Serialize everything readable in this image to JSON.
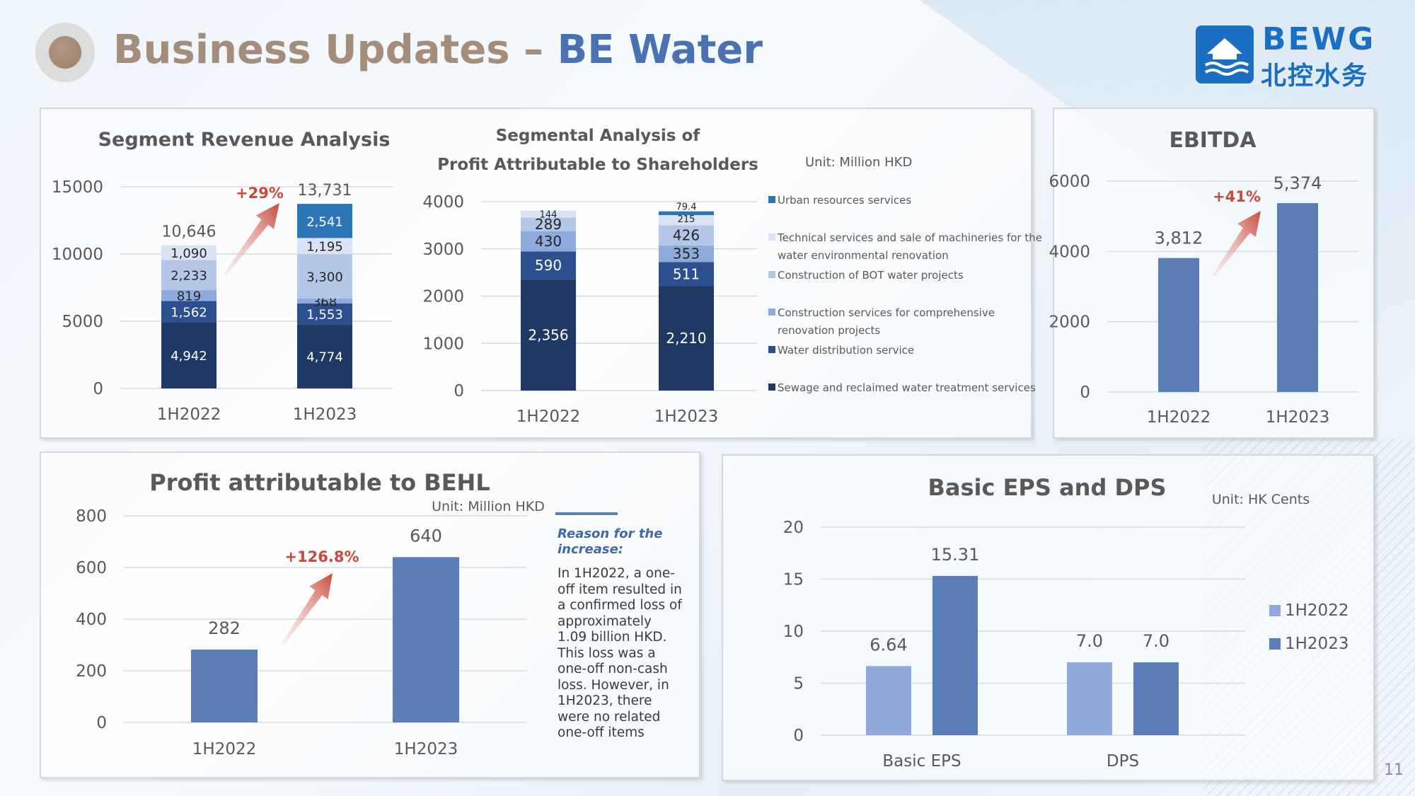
{
  "header": {
    "title_part1": "Business Updates – ",
    "title_part2": "BE Water",
    "logo_en": "BEWG",
    "logo_cn": "北控水务",
    "page_number": "11"
  },
  "colors": {
    "title_brown": "#a58d7c",
    "title_blue": "#4a72b2",
    "bar_blue": "#5b7db8",
    "bar_light": "#8ea9da",
    "growth_red": "#c94a3c"
  },
  "chart_data": [
    {
      "id": "segment_revenue",
      "type": "bar",
      "stacked": true,
      "title": "Segment Revenue Analysis",
      "categories": [
        "1H2022",
        "1H2023"
      ],
      "ylim": [
        0,
        15000
      ],
      "yticks": [
        "0",
        "5000",
        "10000",
        "15000"
      ],
      "series": [
        {
          "values": [
            4942,
            4774
          ],
          "labels": [
            "4,942",
            "4,774"
          ],
          "color": "#1f3864"
        },
        {
          "values": [
            1562,
            1553
          ],
          "labels": [
            "1,562",
            "1,553"
          ],
          "color": "#2c4f8f"
        },
        {
          "values": [
            819,
            368
          ],
          "labels": [
            "819",
            "368"
          ],
          "color": "#8faadc"
        },
        {
          "values": [
            2233,
            3300
          ],
          "labels": [
            "2,233",
            "3,300"
          ],
          "color": "#b4c7e7"
        },
        {
          "values": [
            1090,
            1195
          ],
          "labels": [
            "1,090",
            "1,195"
          ],
          "color": "#dae3f3"
        },
        {
          "values": [
            0,
            2541
          ],
          "labels": [
            "",
            "2,541"
          ],
          "color": "#2e75b6"
        }
      ],
      "totals": [
        "10,646",
        "13,731"
      ],
      "growth": "+29%"
    },
    {
      "id": "profit_segments",
      "type": "bar",
      "stacked": true,
      "title_line1": "Segmental Analysis of",
      "title_line2": "Profit Attributable to Shareholders",
      "unit": "Unit: Million HKD",
      "categories": [
        "1H2022",
        "1H2023"
      ],
      "ylim": [
        0,
        4000
      ],
      "yticks": [
        "0",
        "1000",
        "2000",
        "3000",
        "4000"
      ],
      "series": [
        {
          "name": "Sewage and reclaimed water treatment services",
          "values": [
            2356,
            2210
          ],
          "labels": [
            "2,356",
            "2,210"
          ],
          "color": "#1f3864"
        },
        {
          "name": "Water distribution service",
          "values": [
            590,
            511
          ],
          "labels": [
            "590",
            "511"
          ],
          "color": "#2c4f8f"
        },
        {
          "name": "Construction services for comprehensive renovation projects",
          "values": [
            430,
            353
          ],
          "labels": [
            "430",
            "353"
          ],
          "color": "#8faadc"
        },
        {
          "name": "Construction of BOT water projects",
          "values": [
            289,
            426
          ],
          "labels": [
            "289",
            "426"
          ],
          "color": "#b4c7e7"
        },
        {
          "name": "Technical services and sale of machineries for the water environmental renovation",
          "values": [
            144,
            215
          ],
          "labels": [
            "144",
            "215"
          ],
          "color": "#dae3f3"
        },
        {
          "name": "Urban resources services",
          "values": [
            0,
            79.4
          ],
          "labels": [
            "",
            "79.4"
          ],
          "color": "#2e75b6"
        }
      ],
      "legend_order": [
        "Urban resources services",
        "Technical services and sale of machineries for the water environmental renovation",
        "Construction of BOT water projects",
        "Construction services for comprehensive renovation projects",
        "Water distribution service",
        "Sewage and reclaimed water treatment services"
      ],
      "legend_lines": [
        [
          "Urban resources services"
        ],
        [
          "Technical services and sale of machineries for the",
          "water environmental renovation"
        ],
        [
          "Construction of BOT water projects"
        ],
        [
          "Construction services for comprehensive",
          "renovation projects"
        ],
        [
          "Water distribution service"
        ],
        [
          "Sewage and reclaimed water treatment services"
        ]
      ]
    },
    {
      "id": "ebitda",
      "type": "bar",
      "title": "EBITDA",
      "categories": [
        "1H2022",
        "1H2023"
      ],
      "values": [
        3812,
        5374
      ],
      "labels": [
        "3,812",
        "5,374"
      ],
      "ylim": [
        0,
        6000
      ],
      "yticks": [
        "0",
        "2000",
        "4000",
        "6000"
      ],
      "growth": "+41%"
    },
    {
      "id": "profit_behl",
      "type": "bar",
      "title": "Profit attributable to BEHL",
      "unit": "Unit: Million HKD",
      "categories": [
        "1H2022",
        "1H2023"
      ],
      "values": [
        282,
        640
      ],
      "labels": [
        "282",
        "640"
      ],
      "ylim": [
        0,
        800
      ],
      "yticks": [
        "0",
        "200",
        "400",
        "600",
        "800"
      ],
      "growth": "+126.8%"
    },
    {
      "id": "eps_dps",
      "type": "bar",
      "title": "Basic EPS and DPS",
      "unit": "Unit: HK Cents",
      "categories": [
        "Basic EPS",
        "DPS"
      ],
      "ylim": [
        0,
        20
      ],
      "yticks": [
        "0",
        "5",
        "10",
        "15",
        "20"
      ],
      "series": [
        {
          "name": "1H2022",
          "values": [
            6.64,
            7.0
          ],
          "labels": [
            "6.64",
            "7.0"
          ],
          "color": "#8ea9da"
        },
        {
          "name": "1H2023",
          "values": [
            15.31,
            7.0
          ],
          "labels": [
            "15.31",
            "7.0"
          ],
          "color": "#5b7db8"
        }
      ]
    }
  ],
  "reason": {
    "heading": "Reason for the increase:",
    "lines": [
      "In 1H2022, a one-",
      "off item resulted in",
      "a confirmed loss of",
      "approximately",
      "1.09 billion HKD.",
      "This loss was a",
      "one-off non-cash",
      "loss. However, in",
      "1H2023, there",
      "were no related",
      "one-off items"
    ]
  }
}
